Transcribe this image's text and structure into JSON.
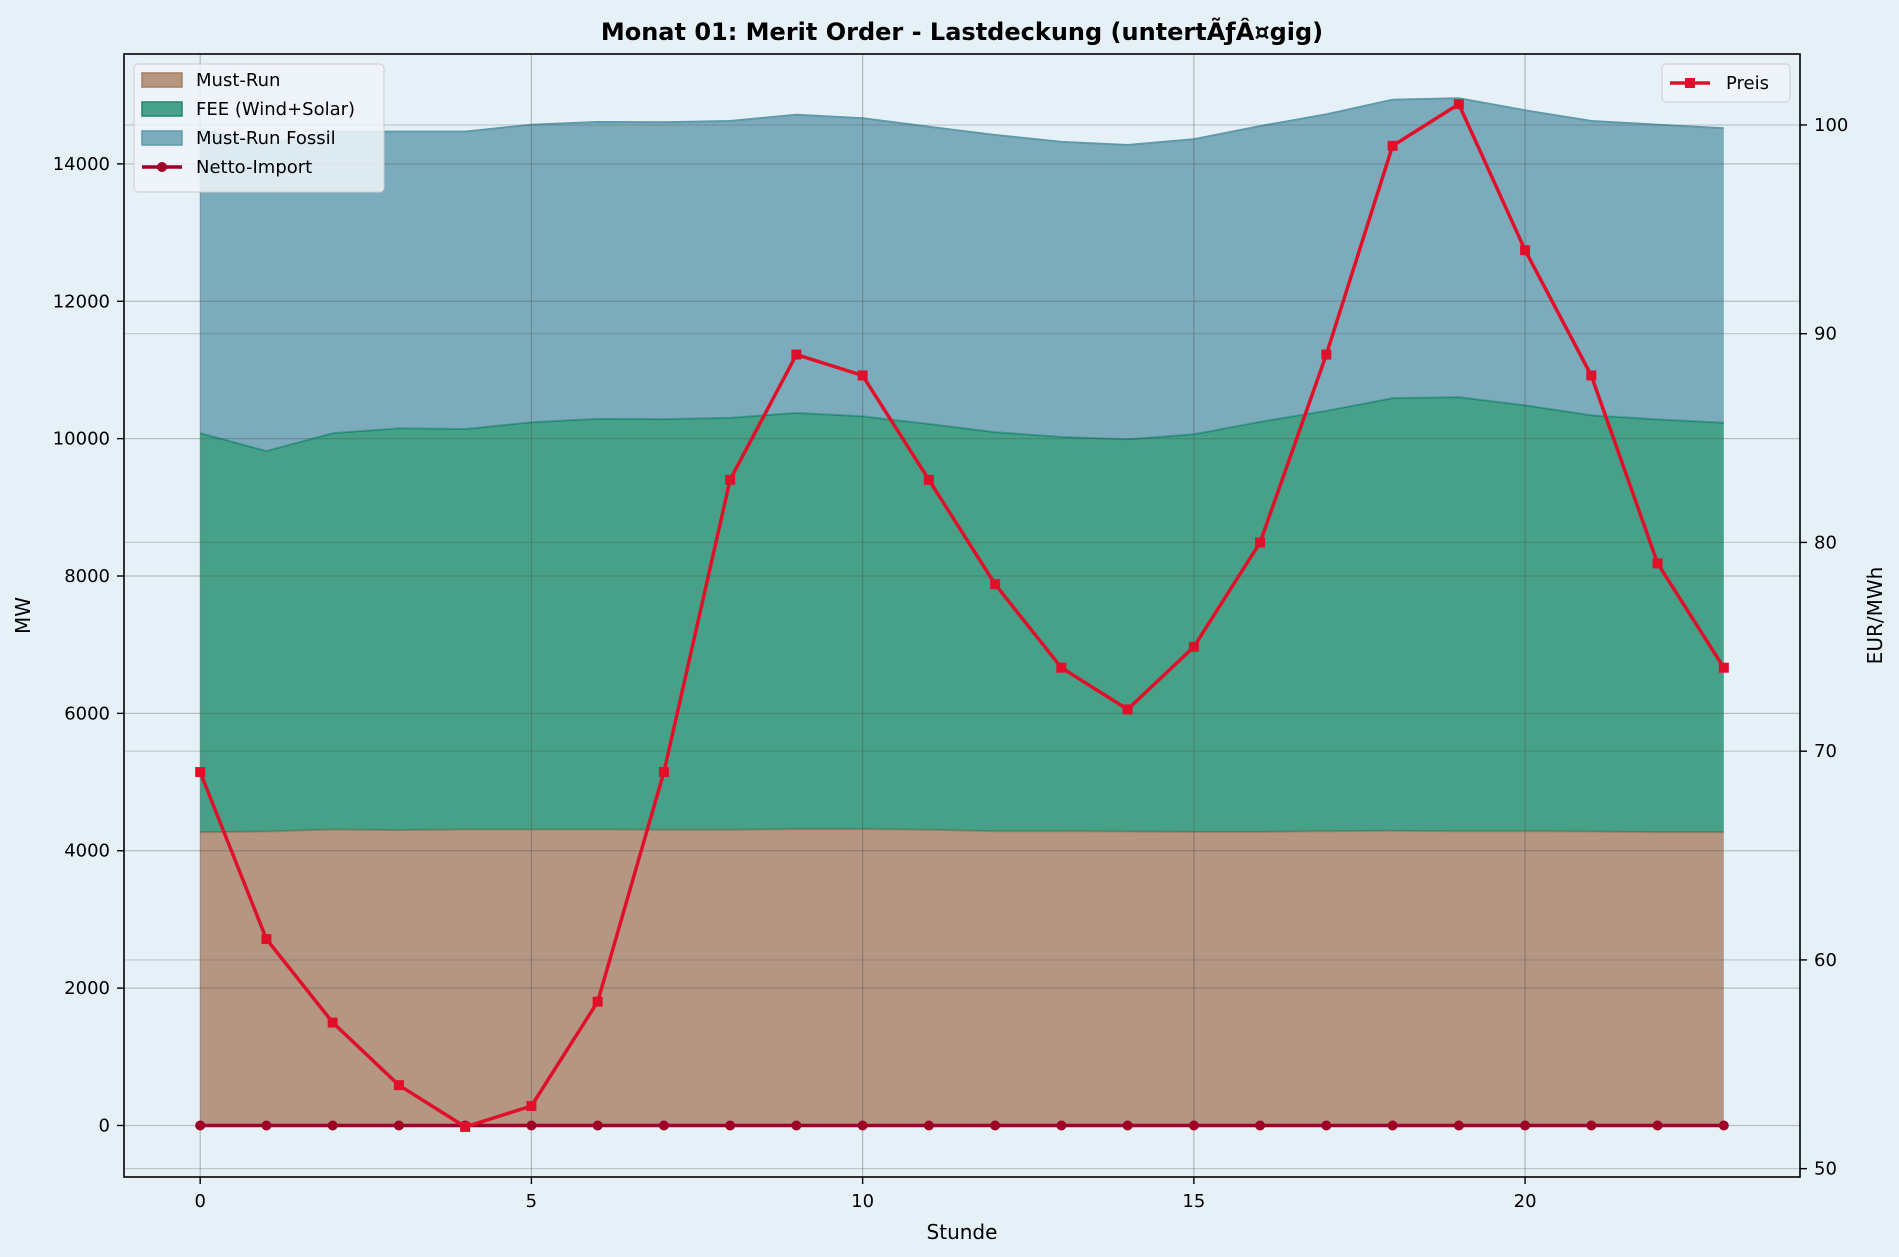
{
  "chart_data": {
    "type": "area",
    "title": "Monat 01: Merit Order - Lastdeckung (untertÃƒÂ¤gig)",
    "xlabel": "Stunde",
    "ylabel": "MW",
    "y2label": "EUR/MWh",
    "xlim": [
      -1.15,
      24.15
    ],
    "ylim": [
      -750,
      15600
    ],
    "y2lim": [
      49.6,
      103.4
    ],
    "x_ticks": [
      0,
      5,
      10,
      15,
      20
    ],
    "y_ticks": [
      0,
      2000,
      4000,
      6000,
      8000,
      10000,
      12000,
      14000
    ],
    "y2_ticks": [
      50,
      60,
      70,
      80,
      90,
      100
    ],
    "grid": true,
    "x": [
      0,
      1,
      2,
      3,
      4,
      5,
      6,
      7,
      8,
      9,
      10,
      11,
      12,
      13,
      14,
      15,
      16,
      17,
      18,
      19,
      20,
      21,
      22,
      23
    ],
    "stacked_series": [
      {
        "name": "Must-Run",
        "color": "#a57c62",
        "values": [
          4270,
          4280,
          4310,
          4300,
          4310,
          4310,
          4310,
          4305,
          4305,
          4315,
          4315,
          4305,
          4285,
          4285,
          4280,
          4275,
          4275,
          4285,
          4290,
          4285,
          4285,
          4280,
          4270,
          4270
        ]
      },
      {
        "name": "FEE (Wind+Solar)",
        "color": "#1a8a6a",
        "values": [
          5810,
          5540,
          5770,
          5850,
          5830,
          5930,
          5980,
          5980,
          6000,
          6060,
          6010,
          5910,
          5810,
          5740,
          5710,
          5790,
          5970,
          6120,
          6300,
          6320,
          6200,
          6060,
          6010,
          5960
        ]
      },
      {
        "name": "Must-Run Fossil",
        "color": "#5e99ac",
        "values": [
          4420,
          4470,
          4390,
          4320,
          4330,
          4330,
          4320,
          4320,
          4320,
          4340,
          4340,
          4325,
          4325,
          4295,
          4285,
          4295,
          4305,
          4315,
          4345,
          4350,
          4295,
          4285,
          4290,
          4290
        ]
      }
    ],
    "line_series": [
      {
        "name": "Netto-Import",
        "axis": "left",
        "color": "#a00028",
        "marker": "circle",
        "values": [
          0,
          0,
          0,
          0,
          0,
          0,
          0,
          0,
          0,
          0,
          0,
          0,
          0,
          0,
          0,
          0,
          0,
          0,
          0,
          0,
          0,
          0,
          0,
          0
        ]
      },
      {
        "name": "Preis",
        "axis": "right",
        "color": "#e0102a",
        "marker": "square",
        "values": [
          69,
          61,
          57,
          54,
          52,
          53,
          58,
          69,
          83,
          89,
          88,
          83,
          78,
          74,
          72,
          75,
          80,
          89,
          99,
          101,
          94,
          88,
          79,
          74
        ]
      }
    ],
    "legend_left": {
      "placement": "top-left",
      "entries": [
        "Must-Run",
        "FEE (Wind+Solar)",
        "Must-Run Fossil",
        "Netto-Import"
      ]
    },
    "legend_right": {
      "placement": "top-right",
      "entries": [
        "Preis"
      ]
    }
  }
}
